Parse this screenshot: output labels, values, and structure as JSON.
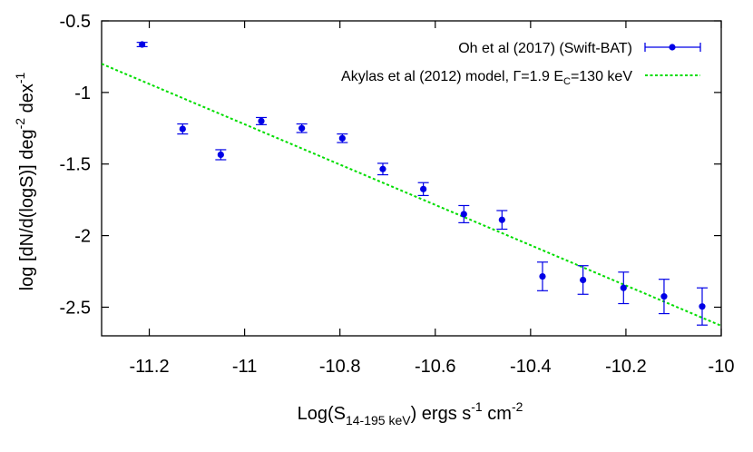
{
  "chart_data": {
    "type": "scatter",
    "xlim": [
      -11.3,
      -10.0
    ],
    "ylim": [
      -2.7,
      -0.5
    ],
    "x_ticks": [
      -11.2,
      -11,
      -10.8,
      -10.6,
      -10.4,
      -10.2,
      -10
    ],
    "x_tick_labels": [
      "-11.2",
      "-11",
      "-10.8",
      "-10.6",
      "-10.4",
      "-10.2",
      "-10"
    ],
    "y_ticks": [
      -0.5,
      -1,
      -1.5,
      -2,
      -2.5
    ],
    "y_tick_labels": [
      "-0.5",
      "-1",
      "-1.5",
      "-2",
      "-2.5"
    ],
    "xlabel": {
      "main": "Log(S",
      "sub": "14-195 keV",
      "rest": ") ergs s",
      "exp1": "-1",
      "mid": " cm",
      "exp2": "-2"
    },
    "ylabel": {
      "main": "log [dN/d(logS)] deg",
      "exp1": "-2",
      "mid": " dex",
      "exp2": "-1"
    },
    "grid": false,
    "legend_position": "top-right",
    "series": [
      {
        "name": "Oh et al (2017) (Swift-BAT)",
        "kind": "points-with-errorbars",
        "color": "#0000e6",
        "points": [
          {
            "x": -11.215,
            "y": -0.665,
            "err": 0.015
          },
          {
            "x": -11.13,
            "y": -1.255,
            "err": 0.035
          },
          {
            "x": -11.05,
            "y": -1.435,
            "err": 0.035
          },
          {
            "x": -10.965,
            "y": -1.2,
            "err": 0.025
          },
          {
            "x": -10.88,
            "y": -1.25,
            "err": 0.03
          },
          {
            "x": -10.795,
            "y": -1.32,
            "err": 0.03
          },
          {
            "x": -10.71,
            "y": -1.535,
            "err": 0.04
          },
          {
            "x": -10.625,
            "y": -1.675,
            "err": 0.045
          },
          {
            "x": -10.54,
            "y": -1.85,
            "err": 0.06
          },
          {
            "x": -10.46,
            "y": -1.89,
            "err": 0.065
          },
          {
            "x": -10.375,
            "y": -2.285,
            "err": 0.1
          },
          {
            "x": -10.29,
            "y": -2.31,
            "err": 0.1
          },
          {
            "x": -10.205,
            "y": -2.365,
            "err": 0.11
          },
          {
            "x": -10.12,
            "y": -2.425,
            "err": 0.12
          },
          {
            "x": -10.04,
            "y": -2.495,
            "err": 0.13
          }
        ]
      },
      {
        "name_prefix": "Akylas et al (2012) model, Γ=1.9 E",
        "name_sub": "C",
        "name_suffix": "=130 keV",
        "kind": "line",
        "color": "#00dd00",
        "x": [
          -11.3,
          -10.0
        ],
        "y": [
          -0.8,
          -2.63
        ]
      }
    ]
  }
}
